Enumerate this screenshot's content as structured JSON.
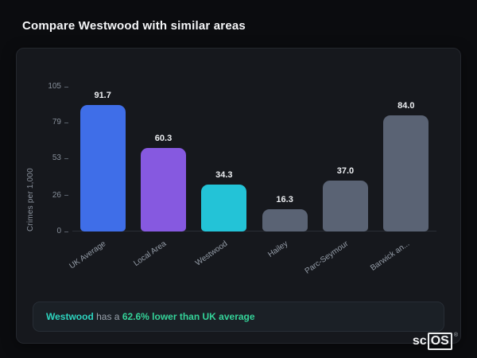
{
  "page": {
    "title": "Compare Westwood with similar areas"
  },
  "chart_data": {
    "type": "bar",
    "title": "",
    "xlabel": "",
    "ylabel": "Crimes per 1,000",
    "ylim": [
      0,
      105
    ],
    "yticks": [
      0,
      26,
      53,
      79,
      105
    ],
    "grid": false,
    "legend": false,
    "categories": [
      "UK Average",
      "Local Area",
      "Westwood",
      "Hailey",
      "Parc-Seymour",
      "Barwick an..."
    ],
    "values": [
      91.7,
      60.3,
      34.3,
      16.3,
      37.0,
      84.0
    ],
    "value_labels": [
      "91.7",
      "60.3",
      "34.3",
      "16.3",
      "37.0",
      "84.0"
    ],
    "bar_colors": [
      "#3f6ee8",
      "#8659e0",
      "#23c3d7",
      "#5a6374",
      "#5a6374",
      "#5a6374"
    ]
  },
  "summary": {
    "area": "Westwood",
    "middle": " has a ",
    "stat": "62.6% lower than UK average"
  },
  "logo": {
    "prefix": "sc",
    "boxed": "OS",
    "registered": "®"
  },
  "colors": {
    "background": "#0b0c0f",
    "card_background": "#16181d",
    "accent_teal": "#2dd4bf",
    "accent_green": "#34d399",
    "bar_blue": "#3f6ee8",
    "bar_purple": "#8659e0",
    "bar_teal": "#23c3d7",
    "bar_slate": "#5a6374"
  }
}
